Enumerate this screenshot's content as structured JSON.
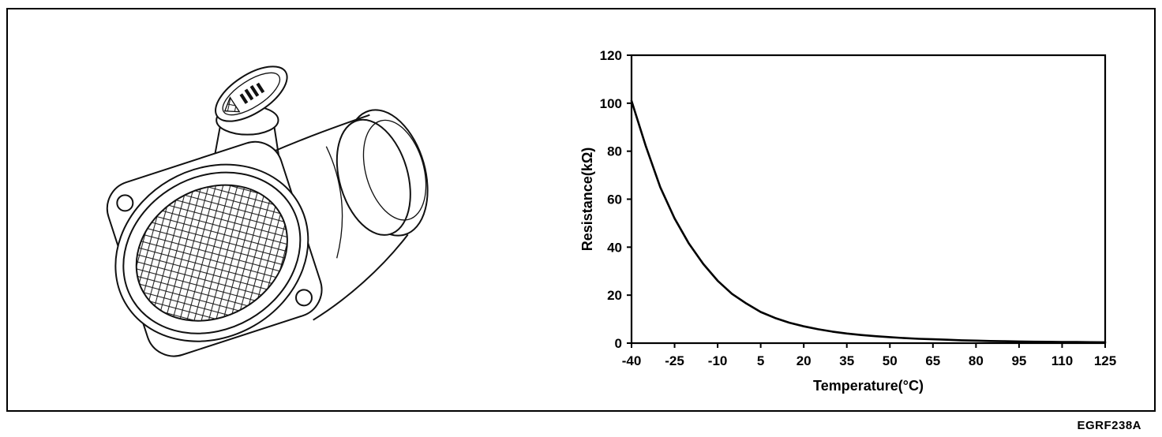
{
  "figure_code": "EGRF238A",
  "illustration": {
    "name": "mass-air-flow-sensor-line-drawing",
    "parts": [
      "flange-plate",
      "bolt-holes",
      "mesh-screen",
      "sensor-body",
      "outlet-ring",
      "electrical-connector",
      "connector-pins"
    ]
  },
  "chart_data": {
    "type": "line",
    "title": "",
    "xlabel": "Temperature(°C)",
    "ylabel": "Resistance(kΩ)",
    "xlim": [
      -40,
      125
    ],
    "ylim": [
      0,
      120
    ],
    "x_ticks": [
      -40,
      -25,
      -10,
      5,
      20,
      35,
      50,
      65,
      80,
      95,
      110,
      125
    ],
    "y_ticks": [
      0,
      20,
      40,
      60,
      80,
      100,
      120
    ],
    "grid": false,
    "legend": false,
    "series": [
      {
        "name": "thermistor-resistance-vs-temperature",
        "x": [
          -40,
          -35,
          -30,
          -25,
          -20,
          -15,
          -10,
          -5,
          0,
          5,
          10,
          15,
          20,
          25,
          30,
          35,
          40,
          45,
          50,
          55,
          60,
          65,
          70,
          75,
          80,
          85,
          90,
          95,
          100,
          105,
          110,
          115,
          120,
          125
        ],
        "y": [
          101,
          82,
          65,
          52,
          41.5,
          33,
          26,
          20.5,
          16.5,
          13,
          10.5,
          8.5,
          7,
          5.8,
          4.8,
          4,
          3.4,
          2.9,
          2.5,
          2.1,
          1.8,
          1.6,
          1.4,
          1.2,
          1.05,
          0.9,
          0.8,
          0.7,
          0.6,
          0.55,
          0.5,
          0.45,
          0.4,
          0.35
        ]
      }
    ]
  }
}
